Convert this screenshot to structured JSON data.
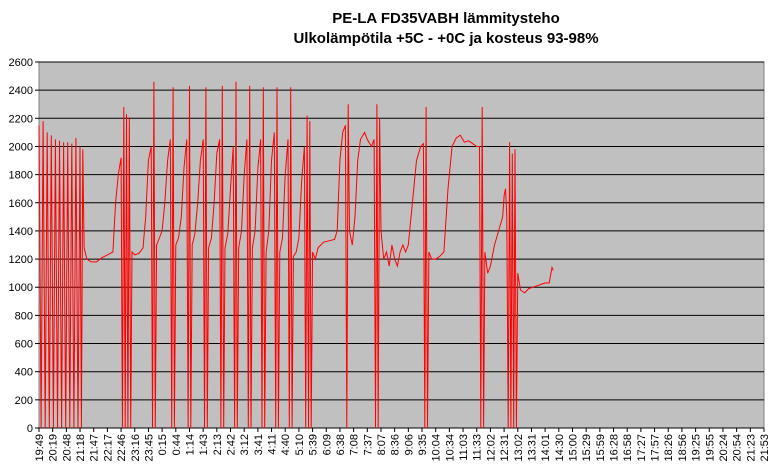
{
  "chart_data": {
    "type": "line",
    "title_line_1": "PE-LA FD35VABH lämmitysteho",
    "title_line_2": "Ulkolämpötila  +5C - +0C ja kosteus 93-98%",
    "ylim": [
      0,
      2600
    ],
    "y_ticks": [
      0,
      200,
      400,
      600,
      800,
      1000,
      1200,
      1400,
      1600,
      1800,
      2000,
      2200,
      2400,
      2600
    ],
    "x_tick_labels": [
      "19:49",
      "20:19",
      "20:48",
      "21:18",
      "21:47",
      "22:17",
      "22:46",
      "23:16",
      "23:45",
      "0:15",
      "0:44",
      "1:14",
      "1:43",
      "2:13",
      "2:42",
      "3:12",
      "3:41",
      "4:11",
      "4:40",
      "5:10",
      "5:39",
      "6:09",
      "6:38",
      "7:08",
      "7:37",
      "8:07",
      "8:36",
      "9:06",
      "9:35",
      "10:04",
      "10:34",
      "11:03",
      "11:33",
      "12:02",
      "12:31",
      "13:02",
      "13:31",
      "14:01",
      "14:30",
      "15:00",
      "15:29",
      "15:59",
      "16:28",
      "16:58",
      "17:27",
      "17:57",
      "18:26",
      "18:56",
      "19:25",
      "19:55",
      "20:24",
      "20:54",
      "21:23",
      "21:53"
    ],
    "grid": "horizontal",
    "legend": "none",
    "plot_bg": "#c0c0c0",
    "line_color": "#ff0000",
    "series": [
      {
        "points": [
          [
            0.0,
            2150
          ],
          [
            0.15,
            0
          ],
          [
            0.3,
            2180
          ],
          [
            0.45,
            0
          ],
          [
            0.6,
            2100
          ],
          [
            0.75,
            0
          ],
          [
            0.9,
            2080
          ],
          [
            1.05,
            0
          ],
          [
            1.2,
            2050
          ],
          [
            1.35,
            0
          ],
          [
            1.5,
            2040
          ],
          [
            1.65,
            0
          ],
          [
            1.8,
            2030
          ],
          [
            1.95,
            0
          ],
          [
            2.1,
            2030
          ],
          [
            2.25,
            0
          ],
          [
            2.4,
            2020
          ],
          [
            2.55,
            0
          ],
          [
            2.7,
            2060
          ],
          [
            2.85,
            0
          ],
          [
            3.0,
            2000
          ],
          [
            3.1,
            0
          ],
          [
            3.2,
            1980
          ],
          [
            3.3,
            1280
          ],
          [
            3.5,
            1200
          ],
          [
            3.8,
            1180
          ],
          [
            4.2,
            1180
          ],
          [
            4.6,
            1210
          ],
          [
            5.0,
            1230
          ],
          [
            5.4,
            1250
          ],
          [
            5.6,
            1600
          ],
          [
            5.8,
            1800
          ],
          [
            6.0,
            1920
          ],
          [
            6.1,
            0
          ],
          [
            6.2,
            2280
          ],
          [
            6.3,
            0
          ],
          [
            6.4,
            2230
          ],
          [
            6.5,
            0
          ],
          [
            6.6,
            2200
          ],
          [
            6.7,
            0
          ],
          [
            6.8,
            1250
          ],
          [
            7.0,
            1230
          ],
          [
            7.3,
            1240
          ],
          [
            7.6,
            1280
          ],
          [
            7.8,
            1500
          ],
          [
            8.0,
            1900
          ],
          [
            8.2,
            2000
          ],
          [
            8.3,
            0
          ],
          [
            8.4,
            2460
          ],
          [
            8.5,
            0
          ],
          [
            8.6,
            1300
          ],
          [
            8.8,
            1350
          ],
          [
            9.0,
            1400
          ],
          [
            9.2,
            1600
          ],
          [
            9.4,
            1900
          ],
          [
            9.6,
            2050
          ],
          [
            9.7,
            0
          ],
          [
            9.8,
            2420
          ],
          [
            9.9,
            0
          ],
          [
            10.0,
            1300
          ],
          [
            10.2,
            1350
          ],
          [
            10.4,
            1500
          ],
          [
            10.6,
            1850
          ],
          [
            10.8,
            2050
          ],
          [
            10.9,
            0
          ],
          [
            11.0,
            2430
          ],
          [
            11.1,
            0
          ],
          [
            11.2,
            1300
          ],
          [
            11.4,
            1380
          ],
          [
            11.6,
            1600
          ],
          [
            11.8,
            1900
          ],
          [
            12.0,
            2050
          ],
          [
            12.1,
            0
          ],
          [
            12.2,
            2420
          ],
          [
            12.3,
            0
          ],
          [
            12.4,
            1280
          ],
          [
            12.6,
            1350
          ],
          [
            12.8,
            1600
          ],
          [
            13.0,
            1950
          ],
          [
            13.2,
            2050
          ],
          [
            13.3,
            0
          ],
          [
            13.4,
            2430
          ],
          [
            13.5,
            0
          ],
          [
            13.6,
            1280
          ],
          [
            13.8,
            1380
          ],
          [
            14.0,
            1700
          ],
          [
            14.2,
            2000
          ],
          [
            14.3,
            0
          ],
          [
            14.4,
            2460
          ],
          [
            14.5,
            0
          ],
          [
            14.6,
            1280
          ],
          [
            14.8,
            1400
          ],
          [
            15.0,
            1800
          ],
          [
            15.2,
            2050
          ],
          [
            15.3,
            0
          ],
          [
            15.4,
            2430
          ],
          [
            15.5,
            0
          ],
          [
            15.6,
            1280
          ],
          [
            15.8,
            1400
          ],
          [
            16.0,
            1850
          ],
          [
            16.2,
            2050
          ],
          [
            16.3,
            0
          ],
          [
            16.4,
            2420
          ],
          [
            16.5,
            0
          ],
          [
            16.6,
            1250
          ],
          [
            16.8,
            1400
          ],
          [
            17.0,
            1900
          ],
          [
            17.2,
            2100
          ],
          [
            17.3,
            0
          ],
          [
            17.4,
            2420
          ],
          [
            17.5,
            0
          ],
          [
            17.6,
            1250
          ],
          [
            17.8,
            1350
          ],
          [
            18.0,
            1800
          ],
          [
            18.2,
            2050
          ],
          [
            18.3,
            0
          ],
          [
            18.4,
            2420
          ],
          [
            18.5,
            0
          ],
          [
            18.6,
            1220
          ],
          [
            18.8,
            1250
          ],
          [
            19.0,
            1350
          ],
          [
            19.2,
            1750
          ],
          [
            19.4,
            2000
          ],
          [
            19.5,
            0
          ],
          [
            19.6,
            2220
          ],
          [
            19.7,
            0
          ],
          [
            19.8,
            2180
          ],
          [
            19.9,
            0
          ],
          [
            20.0,
            1250
          ],
          [
            20.2,
            1200
          ],
          [
            20.4,
            1280
          ],
          [
            20.8,
            1320
          ],
          [
            21.2,
            1330
          ],
          [
            21.6,
            1340
          ],
          [
            21.8,
            1400
          ],
          [
            22.0,
            1900
          ],
          [
            22.2,
            2100
          ],
          [
            22.4,
            2150
          ],
          [
            22.5,
            0
          ],
          [
            22.6,
            2300
          ],
          [
            22.7,
            1400
          ],
          [
            22.9,
            1300
          ],
          [
            23.1,
            1500
          ],
          [
            23.3,
            1900
          ],
          [
            23.5,
            2050
          ],
          [
            23.8,
            2100
          ],
          [
            24.0,
            2050
          ],
          [
            24.3,
            2000
          ],
          [
            24.5,
            2050
          ],
          [
            24.6,
            0
          ],
          [
            24.7,
            2300
          ],
          [
            24.8,
            0
          ],
          [
            24.9,
            2200
          ],
          [
            25.0,
            1400
          ],
          [
            25.2,
            1200
          ],
          [
            25.4,
            1250
          ],
          [
            25.6,
            1150
          ],
          [
            25.8,
            1300
          ],
          [
            26.0,
            1200
          ],
          [
            26.2,
            1150
          ],
          [
            26.4,
            1250
          ],
          [
            26.6,
            1300
          ],
          [
            26.8,
            1250
          ],
          [
            27.0,
            1300
          ],
          [
            27.3,
            1600
          ],
          [
            27.6,
            1900
          ],
          [
            27.9,
            2000
          ],
          [
            28.1,
            2020
          ],
          [
            28.2,
            0
          ],
          [
            28.3,
            2280
          ],
          [
            28.4,
            0
          ],
          [
            28.5,
            1250
          ],
          [
            28.7,
            1200
          ],
          [
            29.0,
            1200
          ],
          [
            29.3,
            1220
          ],
          [
            29.6,
            1250
          ],
          [
            29.9,
            1700
          ],
          [
            30.2,
            2000
          ],
          [
            30.5,
            2060
          ],
          [
            30.8,
            2080
          ],
          [
            31.1,
            2030
          ],
          [
            31.4,
            2040
          ],
          [
            31.7,
            2020
          ],
          [
            32.0,
            2000
          ],
          [
            32.2,
            2000
          ],
          [
            32.3,
            0
          ],
          [
            32.4,
            2280
          ],
          [
            32.5,
            0
          ],
          [
            32.6,
            1250
          ],
          [
            32.8,
            1100
          ],
          [
            33.0,
            1150
          ],
          [
            33.3,
            1300
          ],
          [
            33.6,
            1400
          ],
          [
            33.9,
            1500
          ],
          [
            34.0,
            1650
          ],
          [
            34.1,
            1700
          ],
          [
            34.2,
            1500
          ],
          [
            34.3,
            0
          ],
          [
            34.4,
            2030
          ],
          [
            34.5,
            0
          ],
          [
            34.6,
            1950
          ],
          [
            34.7,
            0
          ],
          [
            34.8,
            1980
          ],
          [
            34.9,
            0
          ],
          [
            35.0,
            1100
          ],
          [
            35.2,
            980
          ],
          [
            35.5,
            960
          ],
          [
            35.8,
            990
          ],
          [
            36.1,
            1000
          ],
          [
            36.4,
            1010
          ],
          [
            36.7,
            1020
          ],
          [
            37.0,
            1030
          ],
          [
            37.3,
            1030
          ],
          [
            37.5,
            1140
          ],
          [
            37.6,
            1120
          ]
        ]
      }
    ]
  }
}
